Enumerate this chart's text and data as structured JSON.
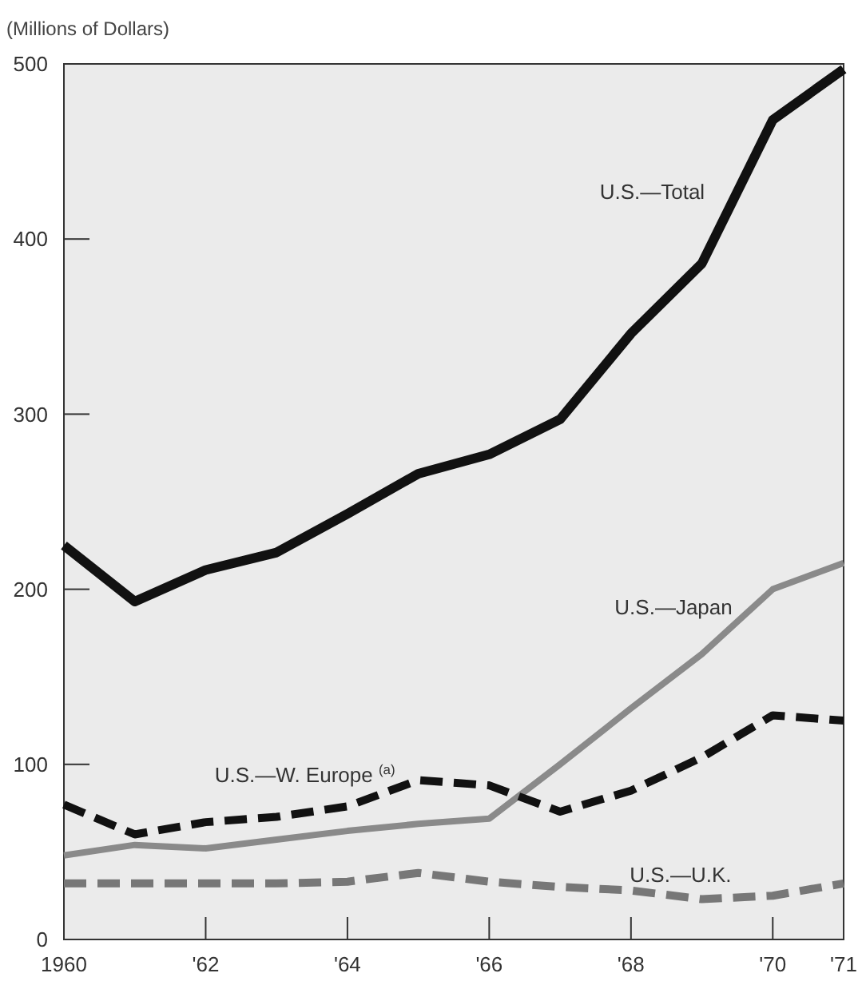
{
  "chart_data": {
    "type": "line",
    "ylabel": "(Millions of Dollars)",
    "x": [
      1960,
      1961,
      1962,
      1963,
      1964,
      1965,
      1966,
      1967,
      1968,
      1969,
      1970,
      1971
    ],
    "xlim": [
      1960,
      1971
    ],
    "xticks": [
      {
        "value": 1960,
        "label": "1960"
      },
      {
        "value": 1962,
        "label": "'62"
      },
      {
        "value": 1964,
        "label": "'64"
      },
      {
        "value": 1966,
        "label": "'66"
      },
      {
        "value": 1968,
        "label": "'68"
      },
      {
        "value": 1970,
        "label": "'70"
      },
      {
        "value": 1971,
        "label": "'71"
      }
    ],
    "ylim": [
      0,
      500
    ],
    "yticks": [
      0,
      100,
      200,
      300,
      400,
      500
    ],
    "grid": false,
    "marker": "none",
    "series": [
      {
        "name": "U.S.—Total",
        "color": "#111111",
        "line_style": "solid",
        "values": [
          225,
          193,
          211,
          221,
          243,
          266,
          277,
          297,
          346,
          386,
          468,
          497
        ]
      },
      {
        "name": "U.S.—Japan",
        "color": "#8a8a8a",
        "line_style": "solid",
        "values": [
          48,
          54,
          52,
          57,
          62,
          66,
          69,
          100,
          132,
          163,
          200,
          215
        ]
      },
      {
        "name": "U.S.—W. Europe $^{(a)}$",
        "color": "#111111",
        "line_style": "dashed",
        "values": [
          77,
          60,
          67,
          70,
          76,
          91,
          88,
          73,
          85,
          104,
          128,
          125
        ]
      },
      {
        "name": "U.S.—U.K.",
        "color": "#777777",
        "line_style": "dashed",
        "values": [
          32,
          32,
          32,
          32,
          33,
          38,
          33,
          30,
          28,
          23,
          25,
          32
        ]
      }
    ]
  }
}
